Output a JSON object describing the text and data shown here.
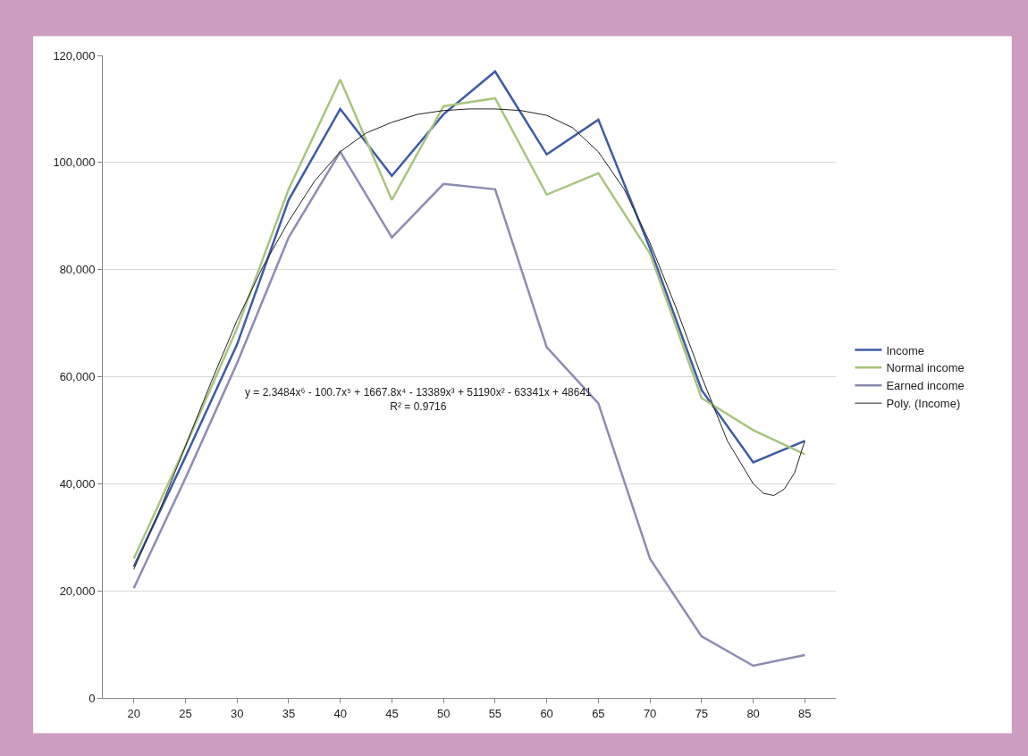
{
  "chart_data": {
    "type": "line",
    "x": [
      20,
      25,
      30,
      35,
      40,
      45,
      50,
      55,
      60,
      65,
      70,
      75,
      80,
      85
    ],
    "xlim": [
      17,
      88
    ],
    "xticks": [
      20,
      25,
      30,
      35,
      40,
      45,
      50,
      55,
      60,
      65,
      70,
      75,
      80,
      85
    ],
    "ylim": [
      0,
      120000
    ],
    "yticks": [
      {
        "value": 0,
        "label": "0"
      },
      {
        "value": 20000,
        "label": "20,000"
      },
      {
        "value": 40000,
        "label": "40,000"
      },
      {
        "value": 60000,
        "label": "60,000"
      },
      {
        "value": 80000,
        "label": "80,000"
      },
      {
        "value": 100000,
        "label": "100,000"
      },
      {
        "value": 120000,
        "label": "120,000"
      }
    ],
    "grid": "y",
    "legend": "right",
    "marker": "none",
    "line_style": "solid",
    "series": [
      {
        "name": "Income",
        "color": "#3e5ba6",
        "values": [
          24500,
          45000,
          66000,
          93000,
          110000,
          97500,
          109000,
          117000,
          101500,
          108000,
          84000,
          57500,
          44000,
          48000
        ]
      },
      {
        "name": "Normal income",
        "color": "#a9c47f",
        "values": [
          26000,
          47000,
          69000,
          95000,
          115500,
          93000,
          110500,
          112000,
          94000,
          98000,
          83000,
          56000,
          50000,
          45500
        ]
      },
      {
        "name": "Earned income",
        "color": "#8c8cb4",
        "values": [
          20500,
          41000,
          62500,
          86000,
          102000,
          86000,
          96000,
          95000,
          65500,
          55000,
          26000,
          11500,
          6000,
          8000
        ]
      },
      {
        "name": "Poly. (Income)",
        "color": "#222222",
        "type": "line",
        "x": [
          20,
          22.5,
          25,
          27.5,
          30,
          32.5,
          35,
          37.5,
          40,
          42.5,
          45,
          47.5,
          50,
          52.5,
          55,
          57.5,
          60,
          62.5,
          65,
          67.5,
          70,
          72.5,
          75,
          77.5,
          80,
          81,
          82,
          83,
          84,
          85
        ],
        "values": [
          24000,
          35000,
          47000,
          59000,
          70500,
          80500,
          89000,
          96500,
          102000,
          105500,
          107500,
          109000,
          109700,
          110000,
          110000,
          109700,
          108800,
          106500,
          102000,
          95000,
          85000,
          73000,
          60000,
          48000,
          40000,
          38200,
          37800,
          39000,
          42000,
          48000
        ]
      }
    ],
    "annotations": [
      "y = 2.3484x⁶ - 100.7x⁵ + 1667.8x⁴ - 13389x³ + 51190x² - 63341x + 48641\nR² = 0.9716"
    ]
  }
}
